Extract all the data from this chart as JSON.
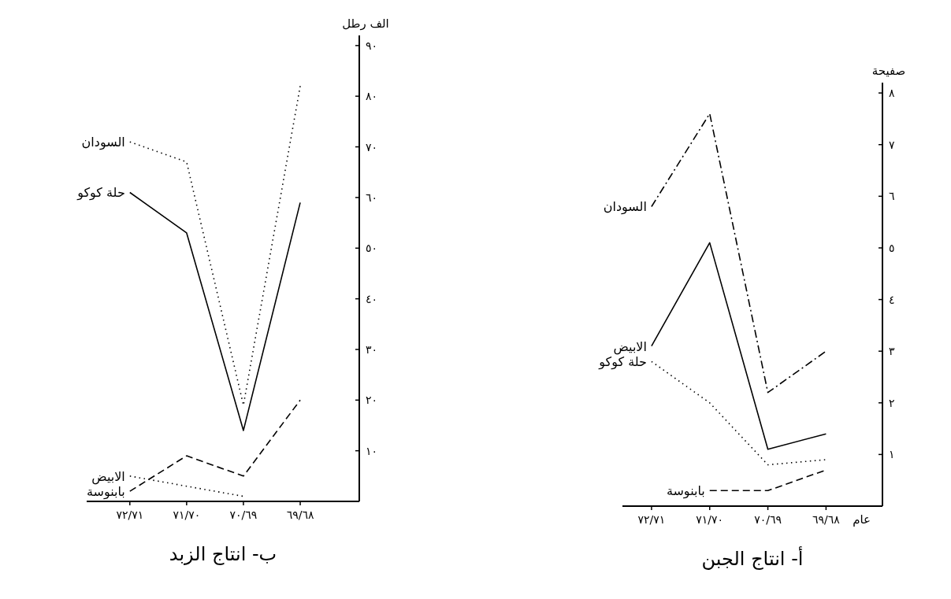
{
  "chart_data": [
    {
      "type": "line",
      "title": "ب- انتاج الزبد",
      "ylabel": "الف رطل",
      "categories": [
        "٧٢/٧١",
        "٧١/٧٠",
        "٧٠/٦٩",
        "٦٩/٦٨"
      ],
      "ylim": [
        0,
        92
      ],
      "yticks": [
        {
          "value": 10,
          "label": "١٠"
        },
        {
          "value": 20,
          "label": "٢٠"
        },
        {
          "value": 30,
          "label": "٣٠"
        },
        {
          "value": 40,
          "label": "٤٠"
        },
        {
          "value": 50,
          "label": "٥٠"
        },
        {
          "value": 60,
          "label": "٦٠"
        },
        {
          "value": 70,
          "label": "٧٠"
        },
        {
          "value": 80,
          "label": "٨٠"
        },
        {
          "value": 90,
          "label": "٩٠"
        }
      ],
      "series": [
        {
          "name": "السودان",
          "color": "#000000",
          "line_style": "dotted",
          "values": [
            71,
            67,
            19,
            82
          ]
        },
        {
          "name": "حلة كوكو",
          "color": "#000000",
          "line_style": "solid",
          "values": [
            61,
            53,
            14,
            59
          ]
        },
        {
          "name": "بابنوسة",
          "color": "#000000",
          "line_style": "dashed",
          "values": [
            2,
            9,
            5,
            20
          ]
        },
        {
          "name": "الابيض",
          "color": "#000000",
          "line_style": "dotted",
          "values": [
            5,
            3,
            1,
            null
          ]
        }
      ],
      "grid": false,
      "legend": false,
      "marker": "none"
    },
    {
      "type": "line",
      "title": "أ- انتاج الجبن",
      "ylabel": "صفيحة",
      "xlabel": "عام",
      "categories": [
        "٧٢/٧١",
        "٧١/٧٠",
        "٧٠/٦٩",
        "٦٩/٦٨"
      ],
      "ylim": [
        0,
        8.2
      ],
      "yticks": [
        {
          "value": 1,
          "label": "١"
        },
        {
          "value": 2,
          "label": "٢"
        },
        {
          "value": 3,
          "label": "٣"
        },
        {
          "value": 4,
          "label": "٤"
        },
        {
          "value": 5,
          "label": "٥"
        },
        {
          "value": 6,
          "label": "٦"
        },
        {
          "value": 7,
          "label": "٧"
        },
        {
          "value": 8,
          "label": "٨"
        }
      ],
      "series": [
        {
          "name": "السودان",
          "color": "#000000",
          "line_style": "dashdot",
          "values": [
            5.8,
            7.6,
            2.2,
            3.0
          ]
        },
        {
          "name": "الابيض",
          "color": "#000000",
          "line_style": "solid",
          "values": [
            3.1,
            5.1,
            1.1,
            1.4
          ]
        },
        {
          "name": "حلة كوكو",
          "color": "#000000",
          "line_style": "dotted",
          "values": [
            2.8,
            2.0,
            0.8,
            0.9
          ]
        },
        {
          "name": "بابنوسة",
          "color": "#000000",
          "line_style": "dashed",
          "values": [
            null,
            0.3,
            0.3,
            0.7
          ]
        }
      ],
      "grid": false,
      "legend": false,
      "marker": "none"
    }
  ]
}
